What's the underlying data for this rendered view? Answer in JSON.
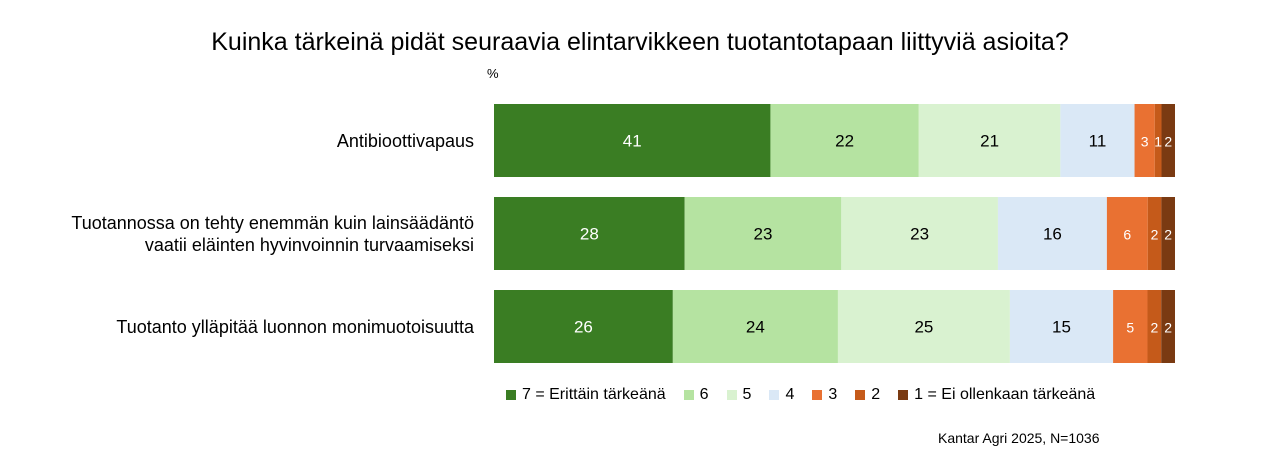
{
  "chart_data": {
    "type": "bar",
    "orientation": "horizontal",
    "stacked": true,
    "title": "Kuinka tärkeinä pidät seuraavia elintarvikkeen tuotantotapaan liittyviä asioita?",
    "unit": "%",
    "categories": [
      [
        "Antibioottivapaus"
      ],
      [
        "Tuotannossa on tehty enemmän kuin lainsäädäntö",
        "vaatii eläinten hyvinvoinnin turvaamiseksi"
      ],
      [
        "Tuotanto ylläpitää luonnon monimuotoisuutta"
      ]
    ],
    "series": [
      {
        "name": "7 = Erittäin tärkeänä",
        "color": "#3a7d23",
        "label_color": "#ffffff",
        "values": [
          41,
          28,
          26
        ]
      },
      {
        "name": "6",
        "color": "#b5e3a1",
        "label_color": "#000000",
        "values": [
          22,
          23,
          24
        ]
      },
      {
        "name": "5",
        "color": "#d9f2d0",
        "label_color": "#000000",
        "values": [
          21,
          23,
          25
        ]
      },
      {
        "name": "4",
        "color": "#dae8f6",
        "label_color": "#000000",
        "values": [
          11,
          16,
          15
        ]
      },
      {
        "name": "3",
        "color": "#e97132",
        "label_color": "#ffffff",
        "values": [
          3,
          6,
          5
        ]
      },
      {
        "name": "2",
        "color": "#c55a1a",
        "label_color": "#ffffff",
        "values": [
          1,
          2,
          2
        ]
      },
      {
        "name": "1 = Ei ollenkaan tärkeänä",
        "color": "#7a3a12",
        "label_color": "#ffffff",
        "values": [
          2,
          2,
          2
        ]
      }
    ],
    "xlim": [
      0,
      100
    ],
    "grid": false,
    "legend_position": "bottom"
  },
  "source_note": "Kantar Agri 2025, N=1036"
}
